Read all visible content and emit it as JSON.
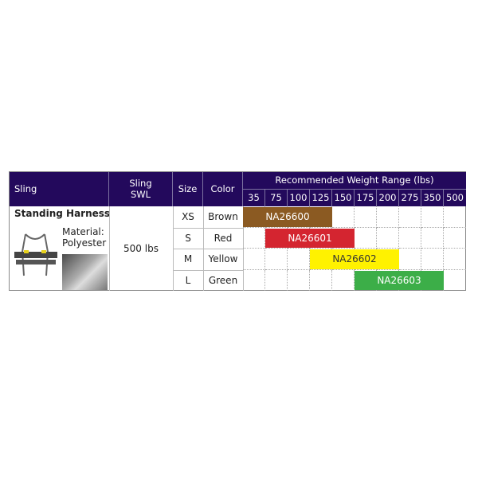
{
  "chart_data": {
    "type": "table",
    "headers": {
      "sling": "Sling",
      "swl": "Sling\nSWL",
      "size": "Size",
      "color": "Color",
      "range": "Recommended Weight Range (lbs)"
    },
    "weight_ticks": [
      "35",
      "75",
      "100",
      "125",
      "150",
      "175",
      "200",
      "275",
      "350",
      "500"
    ],
    "sling_name": "Standing Harness",
    "material": "Material:\nPolyester",
    "swl_value": "500 lbs",
    "rows": [
      {
        "size": "XS",
        "color": "Brown",
        "part": "NA26600",
        "start_index": 0,
        "end_index": 3,
        "bar_color": "#8b5a22",
        "text_color": "#ffffff"
      },
      {
        "size": "S",
        "color": "Red",
        "part": "NA26601",
        "start_index": 1,
        "end_index": 4,
        "bar_color": "#d42530",
        "text_color": "#ffffff"
      },
      {
        "size": "M",
        "color": "Yellow",
        "part": "NA26602",
        "start_index": 3,
        "end_index": 6,
        "bar_color": "#fff200",
        "text_color": "#333333"
      },
      {
        "size": "L",
        "color": "Green",
        "part": "NA26603",
        "start_index": 5,
        "end_index": 8,
        "bar_color": "#3cae48",
        "text_color": "#ffffff"
      }
    ]
  },
  "colors": {
    "header": "#23095c"
  }
}
